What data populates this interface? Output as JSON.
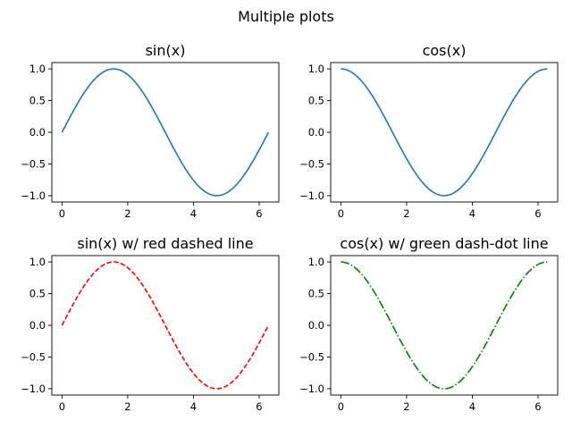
{
  "figure": {
    "suptitle": "Multiple plots"
  },
  "chart_data": [
    {
      "type": "line",
      "title": "sin(x)",
      "xlabel": "",
      "ylabel": "",
      "function": "sin",
      "x": [
        0,
        0.3307,
        0.6614,
        0.9921,
        1.3228,
        1.6535,
        1.9842,
        2.3149,
        2.6456,
        2.9762,
        3.3069,
        3.6376,
        3.9683,
        4.299,
        4.6297,
        4.9604,
        5.2911,
        5.6218,
        5.9525,
        6.2832
      ],
      "y": [
        0.0,
        0.3247,
        0.6142,
        0.8372,
        0.9694,
        0.9966,
        0.9158,
        0.7357,
        0.4759,
        0.1646,
        -0.1646,
        -0.4759,
        -0.7357,
        -0.9158,
        -0.9966,
        -0.9694,
        -0.8372,
        -0.6142,
        -0.3247,
        0.0
      ],
      "xlim": [
        -0.31,
        6.6
      ],
      "ylim": [
        -1.1,
        1.1
      ],
      "xticks": [
        "0",
        "2",
        "4",
        "6"
      ],
      "yticks": [
        "1.0",
        "0.5",
        "0.0",
        "−0.5",
        "−1.0"
      ],
      "style": {
        "color": "#1f77b4",
        "line": "solid"
      },
      "grid": false
    },
    {
      "type": "line",
      "title": "cos(x)",
      "xlabel": "",
      "ylabel": "",
      "function": "cos",
      "x": [
        0,
        0.3307,
        0.6614,
        0.9921,
        1.3228,
        1.6535,
        1.9842,
        2.3149,
        2.6456,
        2.9762,
        3.3069,
        3.6376,
        3.9683,
        4.299,
        4.6297,
        4.9604,
        5.2911,
        5.6218,
        5.9525,
        6.2832
      ],
      "y": [
        1.0,
        0.9458,
        0.7891,
        0.5469,
        0.2455,
        -0.0826,
        -0.4017,
        -0.6773,
        -0.8795,
        -0.9864,
        -0.9864,
        -0.8795,
        -0.6773,
        -0.4017,
        -0.0826,
        0.2455,
        0.5469,
        0.7891,
        0.9458,
        1.0
      ],
      "xlim": [
        -0.31,
        6.6
      ],
      "ylim": [
        -1.1,
        1.1
      ],
      "xticks": [
        "0",
        "2",
        "4",
        "6"
      ],
      "yticks": [
        "1.0",
        "0.5",
        "0.0",
        "−0.5",
        "−1.0"
      ],
      "style": {
        "color": "#1f77b4",
        "line": "solid"
      },
      "grid": false
    },
    {
      "type": "line",
      "title": "sin(x) w/ red dashed line",
      "xlabel": "",
      "ylabel": "",
      "function": "sin",
      "x": [
        0,
        0.3307,
        0.6614,
        0.9921,
        1.3228,
        1.6535,
        1.9842,
        2.3149,
        2.6456,
        2.9762,
        3.3069,
        3.6376,
        3.9683,
        4.299,
        4.6297,
        4.9604,
        5.2911,
        5.6218,
        5.9525,
        6.2832
      ],
      "y": [
        0.0,
        0.3247,
        0.6142,
        0.8372,
        0.9694,
        0.9966,
        0.9158,
        0.7357,
        0.4759,
        0.1646,
        -0.1646,
        -0.4759,
        -0.7357,
        -0.9158,
        -0.9966,
        -0.9694,
        -0.8372,
        -0.6142,
        -0.3247,
        0.0
      ],
      "xlim": [
        -0.31,
        6.6
      ],
      "ylim": [
        -1.1,
        1.1
      ],
      "xticks": [
        "0",
        "2",
        "4",
        "6"
      ],
      "yticks": [
        "1.0",
        "0.5",
        "0.0",
        "−0.5",
        "−1.0"
      ],
      "style": {
        "color": "#ff0000",
        "line": "dashed"
      },
      "grid": false
    },
    {
      "type": "line",
      "title": "cos(x) w/ green dash-dot line",
      "xlabel": "",
      "ylabel": "",
      "function": "cos",
      "x": [
        0,
        0.3307,
        0.6614,
        0.9921,
        1.3228,
        1.6535,
        1.9842,
        2.3149,
        2.6456,
        2.9762,
        3.3069,
        3.6376,
        3.9683,
        4.299,
        4.6297,
        4.9604,
        5.2911,
        5.6218,
        5.9525,
        6.2832
      ],
      "y": [
        1.0,
        0.9458,
        0.7891,
        0.5469,
        0.2455,
        -0.0826,
        -0.4017,
        -0.6773,
        -0.8795,
        -0.9864,
        -0.9864,
        -0.8795,
        -0.6773,
        -0.4017,
        -0.0826,
        0.2455,
        0.5469,
        0.7891,
        0.9458,
        1.0
      ],
      "xlim": [
        -0.31,
        6.6
      ],
      "ylim": [
        -1.1,
        1.1
      ],
      "xticks": [
        "0",
        "2",
        "4",
        "6"
      ],
      "yticks": [
        "1.0",
        "0.5",
        "0.0",
        "−0.5",
        "−1.0"
      ],
      "style": {
        "color": "#008000",
        "line": "dashdot"
      },
      "grid": false
    }
  ]
}
